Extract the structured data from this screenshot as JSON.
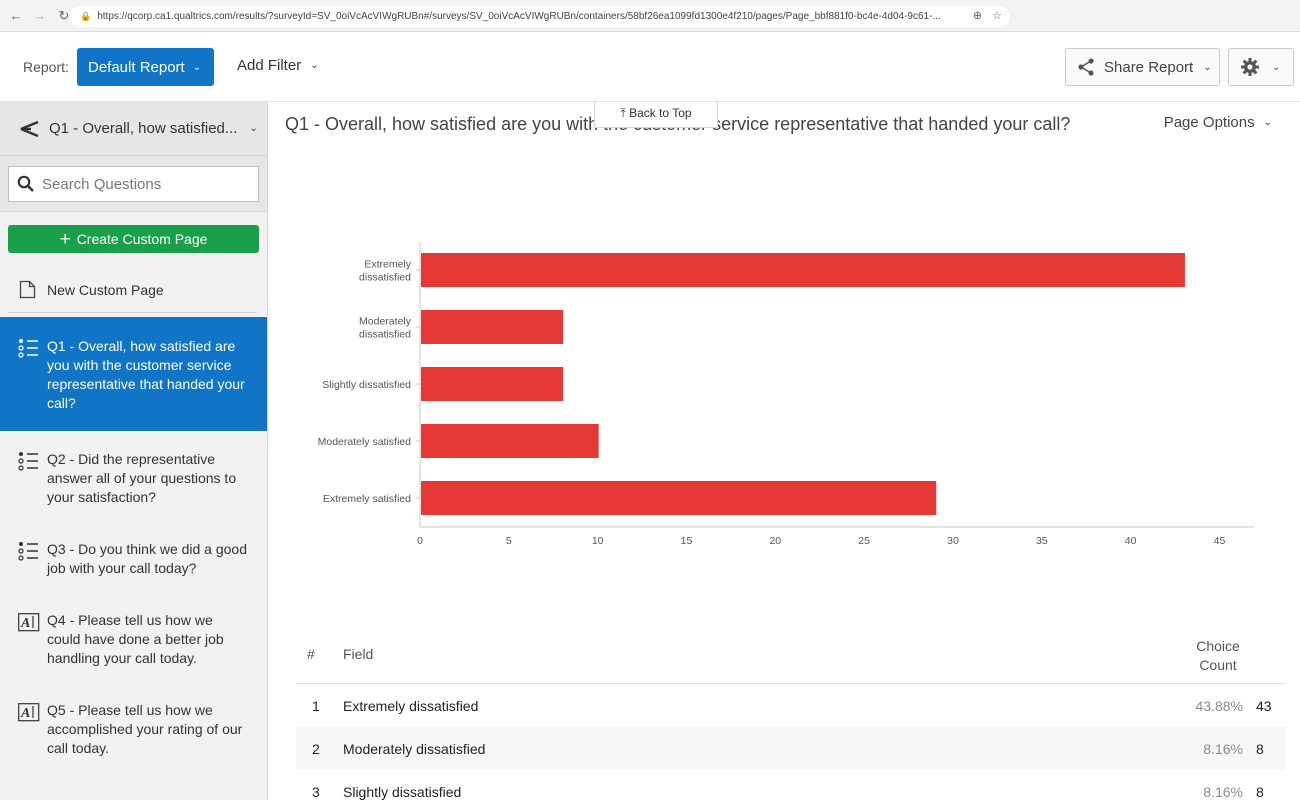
{
  "browser": {
    "url": "https://qcorp.ca1.qualtrics.com/results/?surveyId=SV_0oiVcAcVIWgRUBn#/surveys/SV_0oiVcAcVIWgRUBn/containers/58bf26ea1099fd1300e4f210/pages/Page_bbf881f0-bc4e-4d04-9c61-..."
  },
  "header": {
    "report_label": "Report:",
    "default_report": "Default Report",
    "add_filter": "Add Filter",
    "share_report": "Share Report"
  },
  "sidebar": {
    "current_question": "Q1 - Overall, how satisfied...",
    "search_placeholder": "Search Questions",
    "create_custom_page": "Create Custom Page",
    "new_custom_page": "New Custom Page",
    "questions": [
      {
        "label": "Q1 - Overall, how satisfied are you with the customer service representative that handed your call?",
        "icon": "multiple-choice-icon",
        "active": true
      },
      {
        "label": "Q2 - Did the representative answer all of your questions to your satisfaction?",
        "icon": "multiple-choice-icon",
        "active": false
      },
      {
        "label": "Q3 - Do you think we did a good job with your call today?",
        "icon": "multiple-choice-icon",
        "active": false
      },
      {
        "label": "Q4 - Please tell us how we could have done a better job handling your call today.",
        "icon": "text-entry-icon",
        "active": false
      },
      {
        "label": "Q5 - Please tell us how we accomplished your rating of our call today.",
        "icon": "text-entry-icon",
        "active": false
      }
    ]
  },
  "main": {
    "back_to_top": "⤒ Back to Top",
    "question_title": "Q1 - Overall, how satisfied are you with the customer service representative that handed your call?",
    "page_options": "Page Options"
  },
  "chart_data": {
    "type": "bar",
    "orientation": "horizontal",
    "categories": [
      "Extremely dissatisfied",
      "Moderately dissatisfied",
      "Slightly dissatisfied",
      "Moderately satisfied",
      "Extremely satisfied"
    ],
    "category_lines": [
      [
        "Extremely",
        "dissatisfied"
      ],
      [
        "Moderately",
        "dissatisfied"
      ],
      [
        "Slightly dissatisfied"
      ],
      [
        "Moderately satisfied"
      ],
      [
        "Extremely satisfied"
      ]
    ],
    "values": [
      43,
      8,
      8,
      10,
      29
    ],
    "xlim": [
      0,
      47
    ],
    "xticks": [
      0,
      5,
      10,
      15,
      20,
      25,
      30,
      35,
      40,
      45
    ],
    "bar_color": "#e53935",
    "grid": false
  },
  "table": {
    "headers": {
      "num": "#",
      "field": "Field",
      "count": "Choice Count"
    },
    "rows": [
      {
        "num": "1",
        "field": "Extremely dissatisfied",
        "pct": "43.88%",
        "count": "43"
      },
      {
        "num": "2",
        "field": "Moderately dissatisfied",
        "pct": "8.16%",
        "count": "8"
      },
      {
        "num": "3",
        "field": "Slightly dissatisfied",
        "pct": "8.16%",
        "count": "8"
      }
    ]
  }
}
